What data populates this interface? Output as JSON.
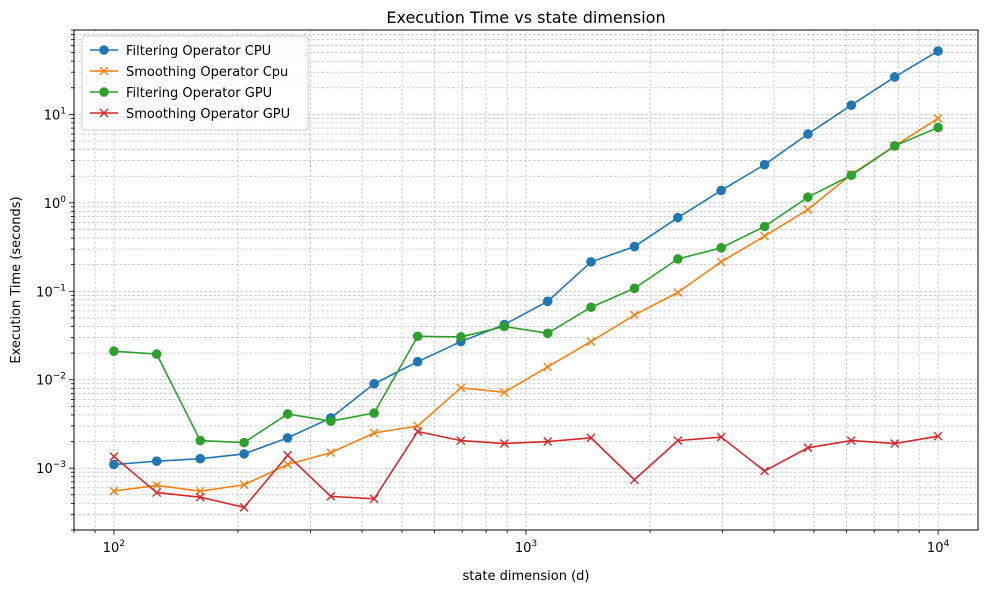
{
  "chart_data": {
    "type": "line",
    "title": "Execution Time vs  state dimension",
    "xlabel": "state dimension (d)",
    "ylabel": "Execution Time (seconds)",
    "xscale": "log",
    "yscale": "log",
    "xlim": [
      80,
      12500
    ],
    "ylim": [
      0.0002,
      90
    ],
    "xticks": [
      {
        "value": 100,
        "base": "10",
        "exp": "2"
      },
      {
        "value": 1000,
        "base": "10",
        "exp": "3"
      },
      {
        "value": 10000,
        "base": "10",
        "exp": "4"
      }
    ],
    "yticks": [
      {
        "value": 0.001,
        "base": "10",
        "exp": "−3"
      },
      {
        "value": 0.01,
        "base": "10",
        "exp": "−2"
      },
      {
        "value": 0.1,
        "base": "10",
        "exp": "−1"
      },
      {
        "value": 1,
        "base": "10",
        "exp": "0"
      },
      {
        "value": 10,
        "base": "10",
        "exp": "1"
      }
    ],
    "grid": true,
    "legend_position": "top-left",
    "x": [
      100,
      127,
      162,
      207,
      264,
      336,
      428,
      546,
      695,
      886,
      1129,
      1438,
      1833,
      2336,
      2976,
      3793,
      4833,
      6158,
      7848,
      10000
    ],
    "series": [
      {
        "name": "Filtering Operator CPU",
        "color": "#1f77b4",
        "marker": "circle",
        "values": [
          0.0011,
          0.0012,
          0.00128,
          0.00145,
          0.0022,
          0.0037,
          0.009,
          0.016,
          0.027,
          0.042,
          0.077,
          0.215,
          0.32,
          0.68,
          1.38,
          2.7,
          6.0,
          12.7,
          26.5,
          52.0
        ]
      },
      {
        "name": "Smoothing Operator Cpu",
        "color": "#ff7f0e",
        "marker": "x",
        "values": [
          0.00055,
          0.00064,
          0.00055,
          0.00065,
          0.0011,
          0.0015,
          0.0025,
          0.003,
          0.0081,
          0.0072,
          0.014,
          0.027,
          0.054,
          0.097,
          0.215,
          0.42,
          0.84,
          2.1,
          4.4,
          9.0
        ]
      },
      {
        "name": "Filtering Operator GPU",
        "color": "#2ca02c",
        "marker": "circle",
        "values": [
          0.021,
          0.0195,
          0.00205,
          0.00195,
          0.0041,
          0.0034,
          0.0042,
          0.031,
          0.0305,
          0.04,
          0.0335,
          0.066,
          0.108,
          0.232,
          0.31,
          0.54,
          1.16,
          2.05,
          4.4,
          7.1
        ]
      },
      {
        "name": "Smoothing Operator GPU",
        "color": "#d62728",
        "marker": "x",
        "values": [
          0.00135,
          0.00053,
          0.00047,
          0.00036,
          0.0014,
          0.00048,
          0.00045,
          0.0026,
          0.00205,
          0.0019,
          0.002,
          0.0022,
          0.00074,
          0.00205,
          0.00225,
          0.00093,
          0.0017,
          0.00205,
          0.0019,
          0.0023
        ]
      }
    ]
  }
}
